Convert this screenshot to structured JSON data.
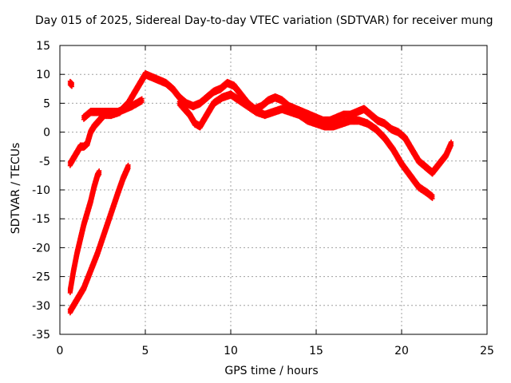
{
  "chart_data": {
    "type": "scatter",
    "title": "Day 015 of 2025, Sidereal Day-to-day VTEC variation (SDTVAR) for receiver mung",
    "xlabel": "GPS time / hours",
    "ylabel": "SDTVAR / TECUs",
    "xlim": [
      0,
      25
    ],
    "ylim": [
      -35,
      15
    ],
    "xticks": [
      0,
      5,
      10,
      15,
      20,
      25
    ],
    "yticks": [
      15,
      10,
      5,
      0,
      -5,
      -10,
      -15,
      -20,
      -25,
      -30,
      -35
    ],
    "grid": true,
    "marker": "+",
    "color": "#ff0000",
    "series": [
      {
        "name": "trace-main-upper",
        "x": [
          0.6,
          0.8,
          1.0,
          1.2,
          1.4,
          1.6,
          1.8,
          2.0,
          2.3,
          2.6,
          3.0,
          3.5,
          4.0,
          4.3,
          4.6,
          5.0,
          5.4,
          5.8,
          6.2,
          6.6,
          7.0,
          7.4,
          7.8,
          8.2,
          8.6,
          9.0,
          9.4,
          9.8,
          10.2,
          10.6,
          11.0,
          11.4,
          11.8,
          12.2,
          12.6,
          13.0,
          13.4,
          13.8,
          14.2,
          14.6,
          15.0,
          15.4,
          15.8,
          16.2,
          16.6,
          17.0,
          17.4,
          17.8,
          18.2,
          18.6,
          19.0,
          19.4,
          19.8,
          20.2,
          20.6,
          21.0,
          21.4,
          21.8,
          22.2,
          22.6,
          22.9
        ],
        "y": [
          -5.5,
          -4.5,
          -3.5,
          -2.5,
          -2.5,
          -2.0,
          0.0,
          1.0,
          2.0,
          3.0,
          3.0,
          3.5,
          5.0,
          6.5,
          8.0,
          10.0,
          9.5,
          9.0,
          8.5,
          7.5,
          6.0,
          5.0,
          4.5,
          5.0,
          6.0,
          7.0,
          7.5,
          8.5,
          8.0,
          6.5,
          5.0,
          4.0,
          4.5,
          5.5,
          6.0,
          5.5,
          4.5,
          4.0,
          3.5,
          3.0,
          2.5,
          2.0,
          2.0,
          2.5,
          3.0,
          3.0,
          3.5,
          4.0,
          3.0,
          2.0,
          1.5,
          0.5,
          0.0,
          -1.0,
          -3.0,
          -5.0,
          -6.0,
          -7.0,
          -5.5,
          -4.0,
          -2.0
        ]
      },
      {
        "name": "trace-main-lower",
        "x": [
          7.0,
          7.3,
          7.6,
          7.9,
          8.2,
          8.6,
          9.0,
          9.5,
          10.0,
          10.5,
          11.0,
          11.5,
          12.0,
          12.5,
          13.0,
          13.5,
          14.0,
          14.5,
          15.0,
          15.5,
          16.0,
          16.5,
          17.0,
          17.5,
          18.0,
          18.5,
          19.0,
          19.5,
          20.0,
          20.5,
          21.0,
          21.5,
          21.8
        ],
        "y": [
          5.0,
          4.0,
          3.0,
          1.5,
          1.0,
          3.0,
          5.0,
          6.0,
          6.5,
          5.5,
          4.5,
          3.5,
          3.0,
          3.5,
          4.0,
          3.5,
          3.0,
          2.0,
          1.5,
          1.0,
          1.0,
          1.5,
          2.0,
          2.0,
          1.5,
          0.5,
          -1.0,
          -3.0,
          -5.5,
          -7.5,
          -9.5,
          -10.5,
          -11.2
        ]
      },
      {
        "name": "trace-isolated",
        "x": [
          0.6,
          0.7
        ],
        "y": [
          8.5,
          8.2
        ]
      },
      {
        "name": "trace-upper-branch",
        "x": [
          1.4,
          1.6,
          1.8,
          2.0,
          2.3,
          2.7,
          3.0,
          3.4,
          3.8,
          4.2,
          4.5,
          4.8
        ],
        "y": [
          2.5,
          3.0,
          3.5,
          3.5,
          3.5,
          3.5,
          3.5,
          3.5,
          4.0,
          4.5,
          5.0,
          5.5
        ]
      },
      {
        "name": "trace-descent-left",
        "x": [
          0.6,
          0.8,
          1.0,
          1.2,
          1.4,
          1.6,
          1.8,
          2.0,
          2.2,
          2.3
        ],
        "y": [
          -27.5,
          -24.0,
          -21.0,
          -18.5,
          -16.0,
          -14.0,
          -12.0,
          -9.5,
          -7.5,
          -7.0
        ]
      },
      {
        "name": "trace-descent-right",
        "x": [
          0.6,
          1.0,
          1.4,
          1.8,
          2.2,
          2.6,
          3.0,
          3.4,
          3.7,
          4.0
        ],
        "y": [
          -31.0,
          -29.0,
          -27.0,
          -24.0,
          -21.0,
          -17.5,
          -14.0,
          -10.5,
          -8.0,
          -6.0
        ]
      }
    ]
  }
}
